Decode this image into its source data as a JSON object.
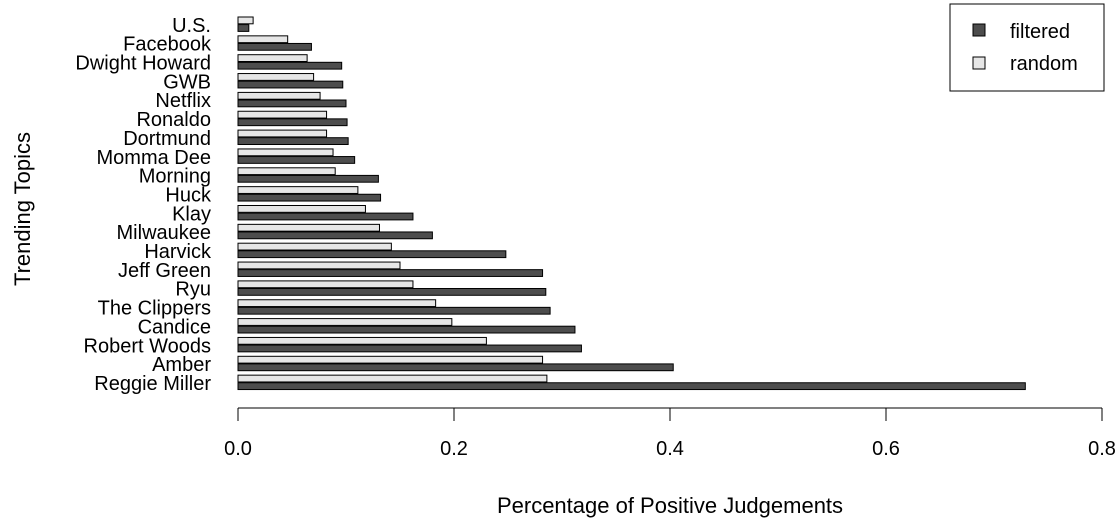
{
  "chart_data": {
    "type": "bar",
    "orientation": "horizontal",
    "title": "",
    "xlabel": "Percentage of Positive Judgements",
    "ylabel": "Trending Topics",
    "xlim": [
      0,
      0.8
    ],
    "xticks": [
      0.0,
      0.2,
      0.4,
      0.6,
      0.8
    ],
    "xtick_labels": [
      "0.0",
      "0.2",
      "0.4",
      "0.6",
      "0.8"
    ],
    "grid": false,
    "legend_position": "top-right",
    "categories": [
      "U.S.",
      "Facebook",
      "Dwight Howard",
      "GWB",
      "Netflix",
      "Ronaldo",
      "Dortmund",
      "Momma Dee",
      "Morning",
      "Huck",
      "Klay",
      "Milwaukee",
      "Harvick",
      "Jeff Green",
      "Ryu",
      "The Clippers",
      "Candice",
      "Robert Woods",
      "Amber",
      "Reggie Miller"
    ],
    "series": [
      {
        "name": "filtered",
        "color": "#4d4d4d",
        "values": [
          0.01,
          0.068,
          0.096,
          0.097,
          0.1,
          0.101,
          0.102,
          0.108,
          0.13,
          0.132,
          0.162,
          0.18,
          0.248,
          0.282,
          0.285,
          0.289,
          0.312,
          0.318,
          0.403,
          0.729
        ]
      },
      {
        "name": "random",
        "color": "#e6e6e6",
        "values": [
          0.014,
          0.046,
          0.064,
          0.07,
          0.076,
          0.082,
          0.082,
          0.088,
          0.09,
          0.111,
          0.118,
          0.131,
          0.142,
          0.15,
          0.162,
          0.183,
          0.198,
          0.23,
          0.282,
          0.286
        ]
      }
    ]
  }
}
